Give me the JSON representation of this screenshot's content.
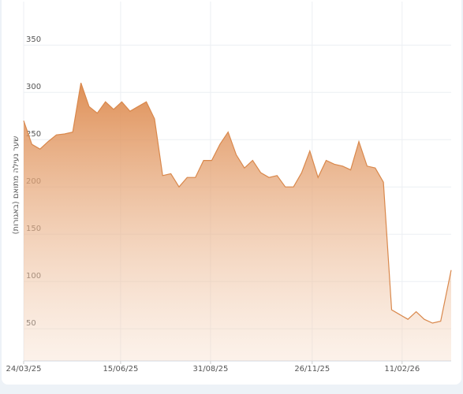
{
  "chart_data": {
    "type": "area",
    "y_label": "שער נעילה מתואם (באגורות)",
    "color": "#d9884c",
    "x": [
      "24/03/25",
      "31/03/25",
      "07/04/25",
      "14/04/25",
      "21/04/25",
      "28/04/25",
      "05/05/25",
      "12/05/25",
      "19/05/25",
      "26/05/25",
      "02/06/25",
      "09/06/25",
      "16/06/25",
      "23/06/25",
      "30/06/25",
      "07/07/25",
      "14/07/25",
      "21/07/25",
      "28/07/25",
      "04/08/25",
      "11/08/25",
      "18/08/25",
      "25/08/25",
      "01/09/25",
      "08/09/25",
      "15/09/25",
      "22/09/25",
      "29/09/25",
      "06/10/25",
      "13/10/25",
      "20/10/25",
      "27/10/25",
      "03/11/25",
      "10/11/25",
      "17/11/25",
      "24/11/25",
      "01/12/25",
      "08/12/25",
      "15/12/25",
      "22/12/25",
      "29/12/25",
      "05/01/26",
      "12/01/26",
      "19/01/26",
      "26/01/26",
      "02/02/26",
      "09/02/26",
      "16/02/26",
      "23/02/26",
      "02/03/26",
      "09/03/26",
      "16/03/26",
      "23/03/26",
      "25/03/26"
    ],
    "values": [
      270,
      245,
      240,
      248,
      255,
      256,
      258,
      310,
      285,
      278,
      290,
      282,
      290,
      280,
      285,
      290,
      272,
      212,
      214,
      200,
      210,
      210,
      228,
      228,
      245,
      258,
      234,
      220,
      228,
      215,
      210,
      212,
      200,
      200,
      215,
      238,
      210,
      228,
      224,
      222,
      218,
      248,
      222,
      220,
      205,
      70,
      65,
      60,
      68,
      60,
      56,
      58,
      100,
      112
    ],
    "xlim": [
      "24/03/25",
      "25/03/26"
    ],
    "xticks": [
      "24/03/25",
      "15/06/25",
      "31/08/25",
      "26/11/25",
      "11/02/26"
    ],
    "ylim": [
      16,
      396
    ],
    "yticks": [
      50,
      100,
      150,
      200,
      250,
      300,
      350
    ],
    "grid": true
  }
}
